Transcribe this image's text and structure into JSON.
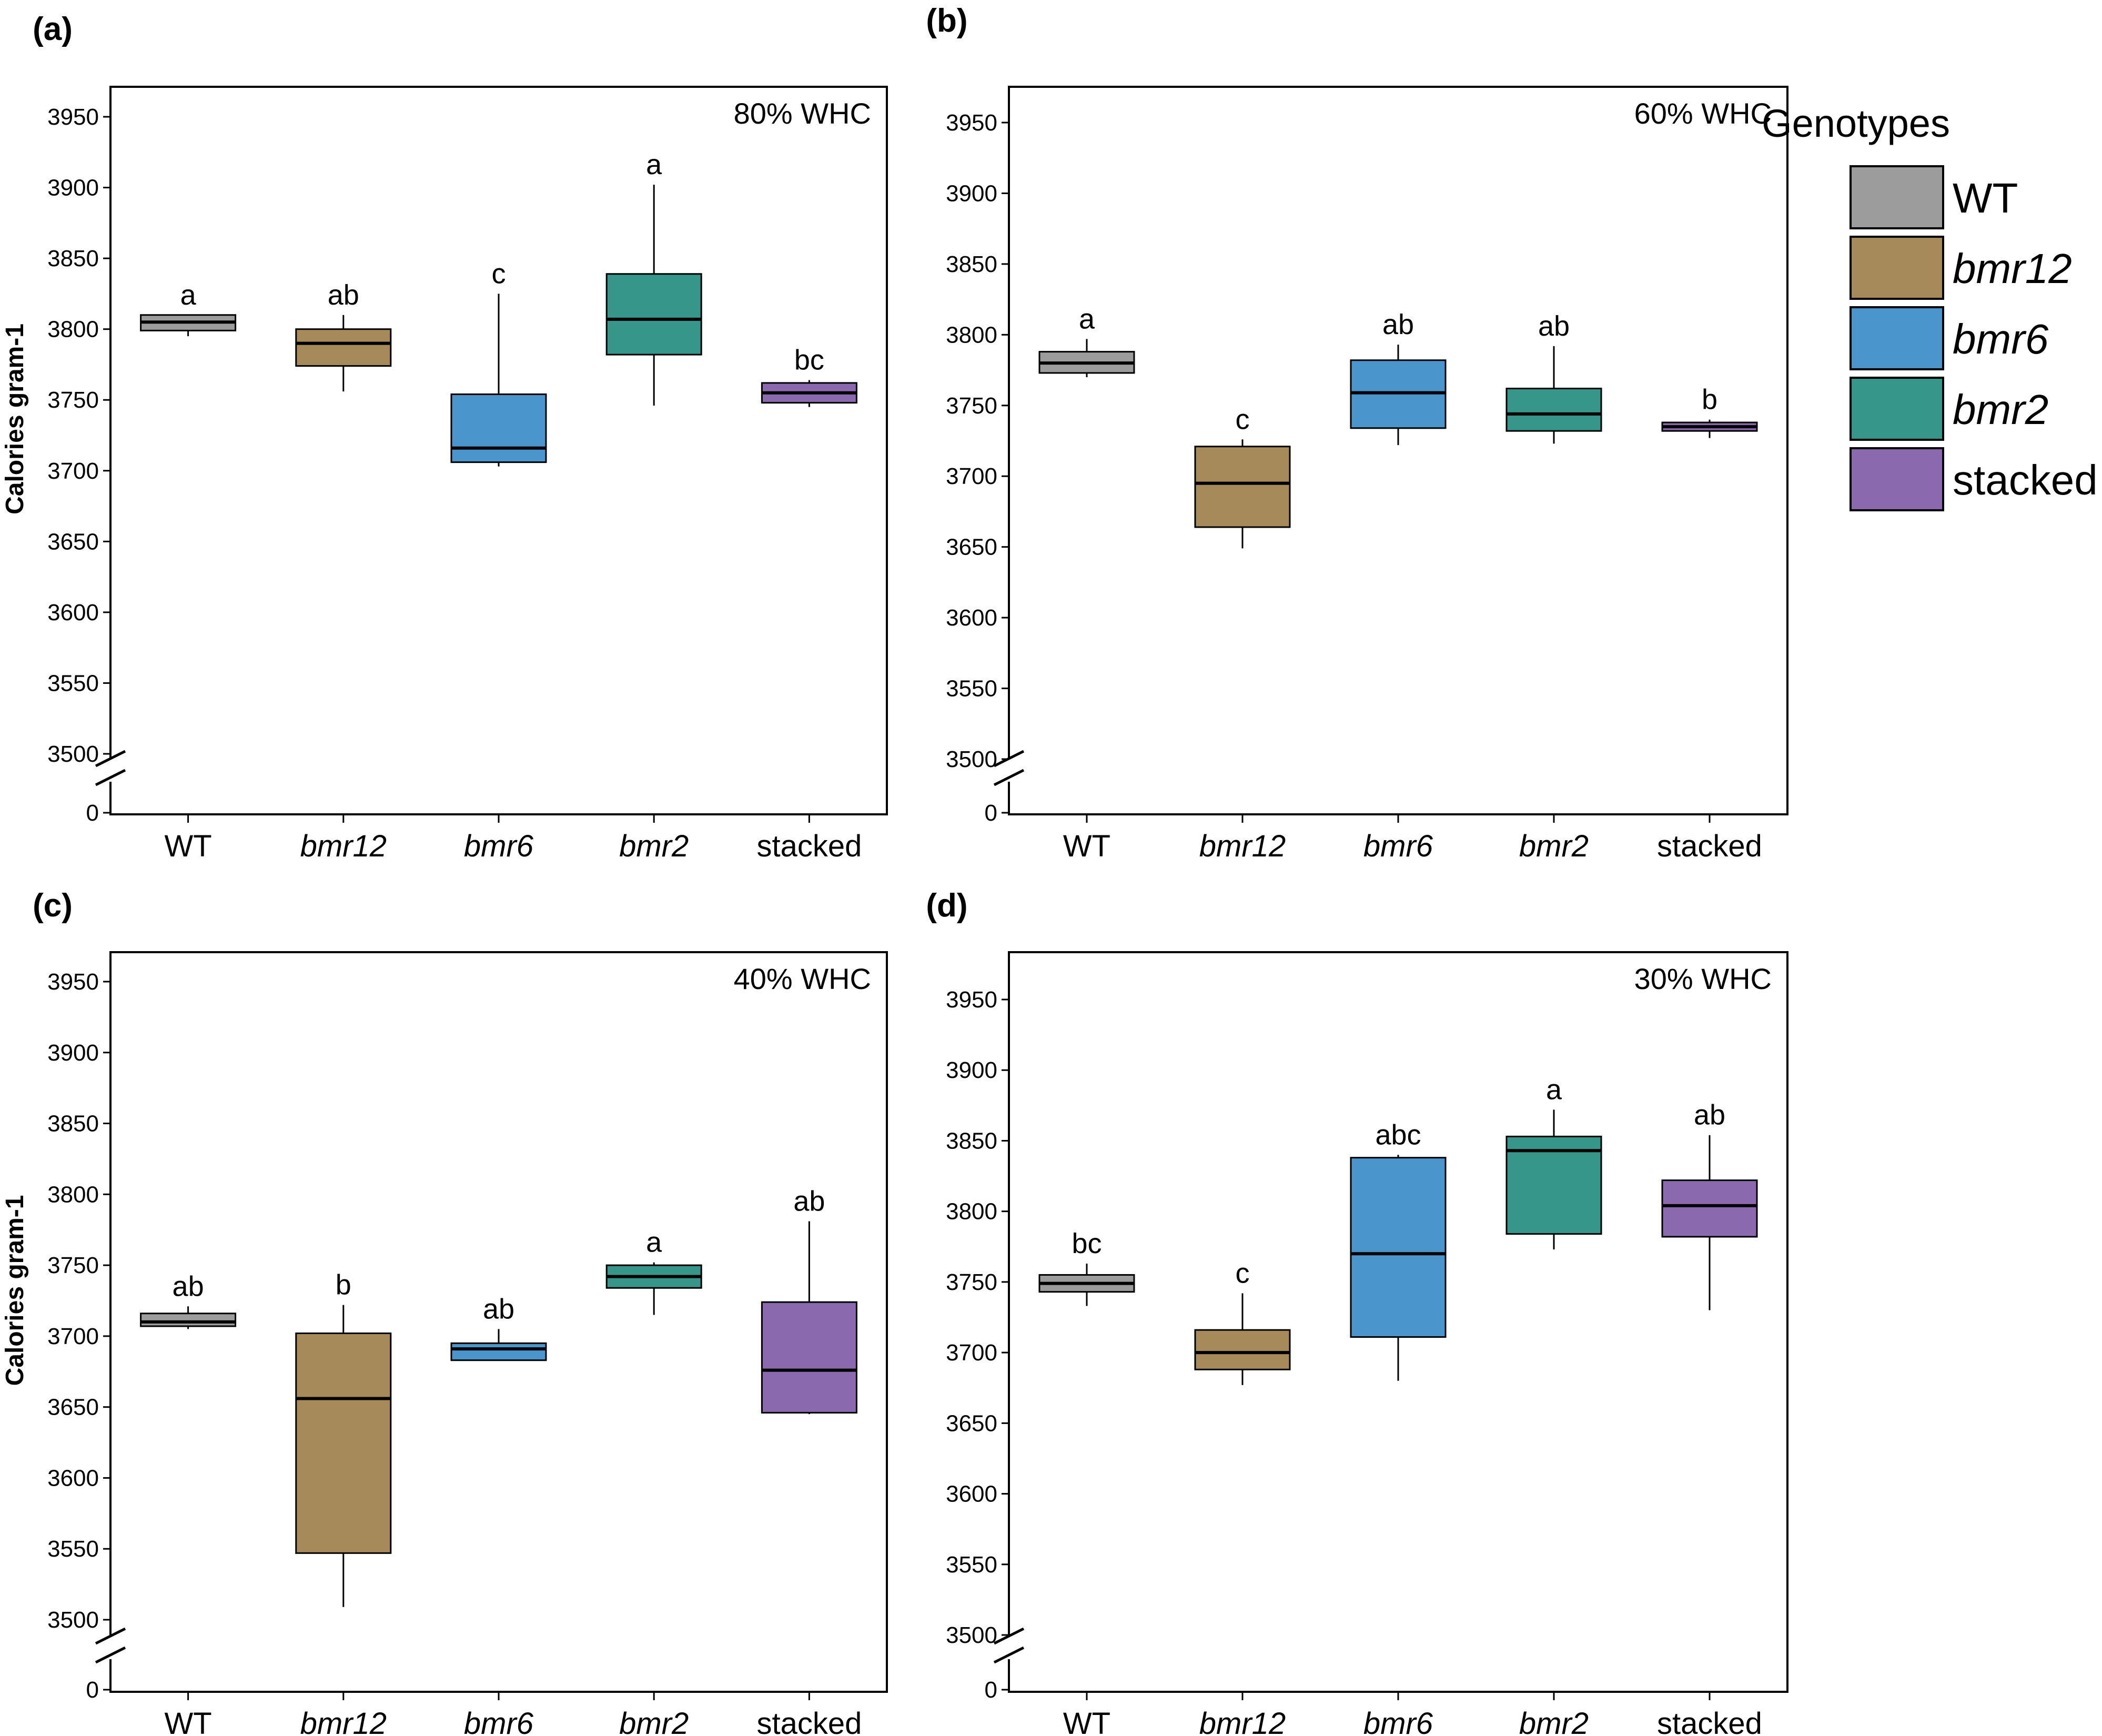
{
  "legend": {
    "title": "Genotypes",
    "items": [
      {
        "label": "WT",
        "color": "#9c9c9c",
        "italic": false
      },
      {
        "label": "bmr12",
        "color": "#a68a59",
        "italic": true
      },
      {
        "label": "bmr6",
        "color": "#4a96cc",
        "italic": true
      },
      {
        "label": "bmr2",
        "color": "#36968a",
        "italic": true
      },
      {
        "label": "stacked",
        "color": "#8b69af",
        "italic": false
      }
    ]
  },
  "chart_data": [
    {
      "type": "box",
      "panel": "(a)",
      "condition": "80% WHC",
      "ylabel": "Calories gram-1",
      "ylim": [
        3500,
        3975
      ],
      "yticks": [
        3500,
        3550,
        3600,
        3650,
        3700,
        3750,
        3800,
        3850,
        3900,
        3950
      ],
      "axis_break": true,
      "zero_label": "0",
      "categories": [
        "WT",
        "bmr12",
        "bmr6",
        "bmr2",
        "stacked"
      ],
      "boxes": [
        {
          "min": 3795,
          "q1": 3799,
          "median": 3805,
          "q3": 3810,
          "max": 3810,
          "letter": "a"
        },
        {
          "min": 3756,
          "q1": 3774,
          "median": 3790,
          "q3": 3800,
          "max": 3810,
          "letter": "ab"
        },
        {
          "min": 3703,
          "q1": 3706,
          "median": 3716,
          "q3": 3754,
          "max": 3825,
          "letter": "c"
        },
        {
          "min": 3746,
          "q1": 3782,
          "median": 3807,
          "q3": 3839,
          "max": 3902,
          "letter": "a"
        },
        {
          "min": 3745,
          "q1": 3748,
          "median": 3755,
          "q3": 3762,
          "max": 3764,
          "letter": "bc"
        }
      ]
    },
    {
      "type": "box",
      "panel": "(b)",
      "condition": "60% WHC",
      "ylabel": "",
      "ylim": [
        3500,
        3975
      ],
      "yticks": [
        3500,
        3550,
        3600,
        3650,
        3700,
        3750,
        3800,
        3850,
        3900,
        3950
      ],
      "axis_break": true,
      "zero_label": "0",
      "categories": [
        "WT",
        "bmr12",
        "bmr6",
        "bmr2",
        "stacked"
      ],
      "boxes": [
        {
          "min": 3770,
          "q1": 3773,
          "median": 3780,
          "q3": 3788,
          "max": 3797,
          "letter": "a"
        },
        {
          "min": 3649,
          "q1": 3664,
          "median": 3695,
          "q3": 3721,
          "max": 3726,
          "letter": "c"
        },
        {
          "min": 3722,
          "q1": 3734,
          "median": 3759,
          "q3": 3782,
          "max": 3793,
          "letter": "ab"
        },
        {
          "min": 3723,
          "q1": 3732,
          "median": 3744,
          "q3": 3762,
          "max": 3792,
          "letter": "ab"
        },
        {
          "min": 3727,
          "q1": 3732,
          "median": 3735,
          "q3": 3738,
          "max": 3740,
          "letter": "b"
        }
      ]
    },
    {
      "type": "box",
      "panel": "(c)",
      "condition": "40% WHC",
      "ylabel": "Calories gram-1",
      "ylim": [
        3500,
        3975
      ],
      "yticks": [
        3500,
        3550,
        3600,
        3650,
        3700,
        3750,
        3800,
        3850,
        3900,
        3950
      ],
      "axis_break": true,
      "zero_label": "0",
      "categories": [
        "WT",
        "bmr12",
        "bmr6",
        "bmr2",
        "stacked"
      ],
      "boxes": [
        {
          "min": 3705,
          "q1": 3707,
          "median": 3710,
          "q3": 3716,
          "max": 3721,
          "letter": "ab"
        },
        {
          "min": 3509,
          "q1": 3547,
          "median": 3656,
          "q3": 3702,
          "max": 3722,
          "letter": "b"
        },
        {
          "min": 3683,
          "q1": 3683,
          "median": 3691,
          "q3": 3695,
          "max": 3705,
          "letter": "ab"
        },
        {
          "min": 3715,
          "q1": 3734,
          "median": 3742,
          "q3": 3750,
          "max": 3752,
          "letter": "a"
        },
        {
          "min": 3645,
          "q1": 3646,
          "median": 3676,
          "q3": 3724,
          "max": 3781,
          "letter": "ab"
        }
      ]
    },
    {
      "type": "box",
      "panel": "(d)",
      "condition": "30% WHC",
      "ylabel": "",
      "ylim": [
        3500,
        3975
      ],
      "yticks": [
        3500,
        3550,
        3600,
        3650,
        3700,
        3750,
        3800,
        3850,
        3900,
        3950
      ],
      "axis_break": true,
      "zero_label": "0",
      "categories": [
        "WT",
        "bmr12",
        "bmr6",
        "bmr2",
        "stacked"
      ],
      "boxes": [
        {
          "min": 3733,
          "q1": 3743,
          "median": 3749,
          "q3": 3755,
          "max": 3763,
          "letter": "bc"
        },
        {
          "min": 3677,
          "q1": 3688,
          "median": 3700,
          "q3": 3716,
          "max": 3742,
          "letter": "c"
        },
        {
          "min": 3680,
          "q1": 3711,
          "median": 3770,
          "q3": 3838,
          "max": 3840,
          "letter": "abc"
        },
        {
          "min": 3773,
          "q1": 3784,
          "median": 3843,
          "q3": 3853,
          "max": 3872,
          "letter": "a"
        },
        {
          "min": 3730,
          "q1": 3782,
          "median": 3804,
          "q3": 3822,
          "max": 3854,
          "letter": "ab"
        }
      ]
    }
  ]
}
